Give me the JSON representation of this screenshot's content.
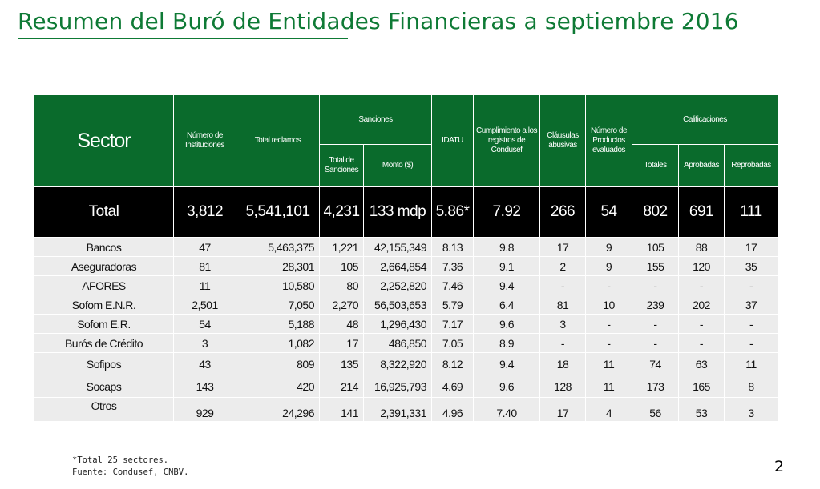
{
  "title": "Resumen del Buró de Entidades Financieras a septiembre 2016",
  "colors": {
    "accent": "#0e7a35",
    "header_bg": "#0a6b2c",
    "total_bg": "#000000",
    "row_bg": "#ececec"
  },
  "headers": {
    "sector": "Sector",
    "instituciones": "Número de Instituciones",
    "reclamos": "Total reclamos",
    "sanciones": "Sanciones",
    "total_sanciones": "Total de Sanciones",
    "monto": "Monto ($)",
    "idatu": "IDATU",
    "cumplimiento": "Cumplimiento a los registros de Condusef",
    "clausulas": "Cláusulas abusivas",
    "productos": "Número de Productos evaluados",
    "calificaciones": "Calificaciones",
    "totales": "Totales",
    "aprobadas": "Aprobadas",
    "reprobadas": "Reprobadas"
  },
  "total": {
    "sector": "Total",
    "instituciones": "3,812",
    "reclamos": "5,541,101",
    "sanciones": "4,231",
    "monto": "133 mdp",
    "idatu": "5.86*",
    "cumplimiento": "7.92",
    "clausulas": "266",
    "productos": "54",
    "totales": "802",
    "aprobadas": "691",
    "reprobadas": "111"
  },
  "rows": [
    {
      "sector": "Bancos",
      "instituciones": "47",
      "reclamos": "5,463,375",
      "sanciones": "1,221",
      "monto": "42,155,349",
      "idatu": "8.13",
      "cumplimiento": "9.8",
      "clausulas": "17",
      "productos": "9",
      "totales": "105",
      "aprobadas": "88",
      "reprobadas": "17"
    },
    {
      "sector": "Aseguradoras",
      "instituciones": "81",
      "reclamos": "28,301",
      "sanciones": "105",
      "monto": "2,664,854",
      "idatu": "7.36",
      "cumplimiento": "9.1",
      "clausulas": "2",
      "productos": "9",
      "totales": "155",
      "aprobadas": "120",
      "reprobadas": "35"
    },
    {
      "sector": "AFORES",
      "instituciones": "11",
      "reclamos": "10,580",
      "sanciones": "80",
      "monto": "2,252,820",
      "idatu": "7.46",
      "cumplimiento": "9.4",
      "clausulas": "-",
      "productos": "-",
      "totales": "-",
      "aprobadas": "-",
      "reprobadas": "-"
    },
    {
      "sector": "Sofom E.N.R.",
      "instituciones": "2,501",
      "reclamos": "7,050",
      "sanciones": "2,270",
      "monto": "56,503,653",
      "idatu": "5.79",
      "cumplimiento": "6.4",
      "clausulas": "81",
      "productos": "10",
      "totales": "239",
      "aprobadas": "202",
      "reprobadas": "37"
    },
    {
      "sector": "Sofom E.R.",
      "instituciones": "54",
      "reclamos": "5,188",
      "sanciones": "48",
      "monto": "1,296,430",
      "idatu": "7.17",
      "cumplimiento": "9.6",
      "clausulas": "3",
      "productos": "-",
      "totales": "-",
      "aprobadas": "-",
      "reprobadas": "-"
    },
    {
      "sector": "Burós de Crédito",
      "instituciones": "3",
      "reclamos": "1,082",
      "sanciones": "17",
      "monto": "486,850",
      "idatu": "7.05",
      "cumplimiento": "8.9",
      "clausulas": "-",
      "productos": "-",
      "totales": "-",
      "aprobadas": "-",
      "reprobadas": "-"
    },
    {
      "sector": "Sofipos",
      "instituciones": "43",
      "reclamos": "809",
      "sanciones": "135",
      "monto": "8,322,920",
      "idatu": "8.12",
      "cumplimiento": "9.4",
      "clausulas": "18",
      "productos": "11",
      "totales": "74",
      "aprobadas": "63",
      "reprobadas": "11"
    },
    {
      "sector": "Socaps",
      "instituciones": "143",
      "reclamos": "420",
      "sanciones": "214",
      "monto": "16,925,793",
      "idatu": "4.69",
      "cumplimiento": "9.6",
      "clausulas": "128",
      "productos": "11",
      "totales": "173",
      "aprobadas": "165",
      "reprobadas": "8"
    },
    {
      "sector": "Otros",
      "instituciones": "929",
      "reclamos": "24,296",
      "sanciones": "141",
      "monto": "2,391,331",
      "idatu": "4.96",
      "cumplimiento": "7.40",
      "clausulas": "17",
      "productos": "4",
      "totales": "56",
      "aprobadas": "53",
      "reprobadas": "3"
    }
  ],
  "footnotes": [
    "*Total 25 sectores.",
    "Fuente: Condusef, CNBV."
  ],
  "page_number": "2"
}
